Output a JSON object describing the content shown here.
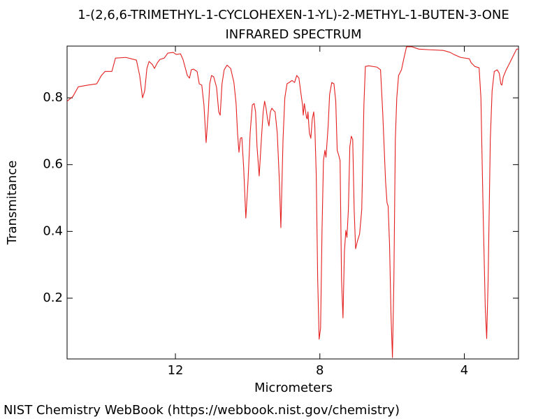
{
  "chart_data": {
    "type": "line",
    "title": "1-(2,6,6-TRIMETHYL-1-CYCLOHEXEN-1-YL)-2-METHYL-1-BUTEN-3-ONE",
    "subtitle": "INFRARED SPECTRUM",
    "x_label": "Micrometers",
    "y_label": "Transmitance",
    "color": "#e41f1f",
    "xlim": [
      15,
      2.5
    ],
    "xticks": [
      12,
      8,
      4
    ],
    "ylim": [
      0.018,
      0.955
    ],
    "yticks": [
      0.2,
      0.4,
      0.6,
      0.8
    ],
    "x": [
      15.0,
      14.84,
      14.69,
      14.43,
      14.18,
      14.05,
      13.95,
      13.76,
      13.66,
      13.37,
      13.08,
      12.99,
      12.91,
      12.85,
      12.79,
      12.73,
      12.64,
      12.58,
      12.5,
      12.43,
      12.31,
      12.21,
      12.06,
      11.98,
      11.86,
      11.79,
      11.67,
      11.61,
      11.56,
      11.5,
      11.4,
      11.34,
      11.27,
      11.21,
      11.15,
      11.09,
      11.05,
      11.0,
      10.94,
      10.86,
      10.8,
      10.76,
      10.71,
      10.65,
      10.57,
      10.47,
      10.38,
      10.32,
      10.28,
      10.24,
      10.2,
      10.16,
      10.11,
      10.05,
      9.99,
      9.93,
      9.87,
      9.82,
      9.78,
      9.74,
      9.68,
      9.62,
      9.57,
      9.53,
      9.49,
      9.45,
      9.41,
      9.37,
      9.33,
      9.28,
      9.24,
      9.18,
      9.12,
      9.08,
      9.02,
      8.97,
      8.91,
      8.85,
      8.77,
      8.7,
      8.64,
      8.58,
      8.52,
      8.48,
      8.46,
      8.43,
      8.41,
      8.37,
      8.35,
      8.33,
      8.29,
      8.25,
      8.21,
      8.17,
      8.14,
      8.1,
      8.06,
      8.02,
      7.98,
      7.94,
      7.9,
      7.86,
      7.83,
      7.77,
      7.73,
      7.67,
      7.61,
      7.56,
      7.52,
      7.48,
      7.44,
      7.4,
      7.36,
      7.32,
      7.28,
      7.25,
      7.21,
      7.17,
      7.13,
      7.09,
      7.05,
      7.01,
      6.96,
      6.9,
      6.84,
      6.78,
      6.74,
      6.65,
      6.42,
      6.32,
      6.26,
      6.18,
      6.14,
      6.11,
      6.07,
      6.03,
      5.99,
      5.95,
      5.91,
      5.87,
      5.82,
      5.74,
      5.68,
      5.6,
      5.45,
      5.26,
      4.97,
      4.58,
      4.39,
      4.29,
      4.1,
      3.86,
      3.81,
      3.71,
      3.59,
      3.54,
      3.48,
      3.42,
      3.38,
      3.34,
      3.28,
      3.23,
      3.17,
      3.09,
      3.03,
      2.99,
      2.96,
      2.92,
      2.84,
      2.74,
      2.65,
      2.55,
      2.5
    ],
    "values": [
      0.79,
      0.804,
      0.833,
      0.838,
      0.842,
      0.867,
      0.879,
      0.879,
      0.919,
      0.921,
      0.913,
      0.867,
      0.8,
      0.821,
      0.888,
      0.909,
      0.9,
      0.888,
      0.905,
      0.915,
      0.919,
      0.934,
      0.936,
      0.93,
      0.932,
      0.915,
      0.867,
      0.859,
      0.884,
      0.886,
      0.879,
      0.842,
      0.838,
      0.779,
      0.666,
      0.758,
      0.842,
      0.867,
      0.863,
      0.831,
      0.758,
      0.748,
      0.842,
      0.884,
      0.898,
      0.888,
      0.846,
      0.783,
      0.695,
      0.637,
      0.679,
      0.681,
      0.591,
      0.44,
      0.549,
      0.695,
      0.779,
      0.783,
      0.758,
      0.654,
      0.566,
      0.675,
      0.758,
      0.79,
      0.769,
      0.737,
      0.716,
      0.758,
      0.769,
      0.762,
      0.758,
      0.695,
      0.549,
      0.411,
      0.675,
      0.8,
      0.842,
      0.846,
      0.852,
      0.846,
      0.867,
      0.859,
      0.81,
      0.779,
      0.748,
      0.783,
      0.769,
      0.741,
      0.737,
      0.758,
      0.695,
      0.679,
      0.737,
      0.758,
      0.716,
      0.57,
      0.256,
      0.077,
      0.11,
      0.403,
      0.612,
      0.643,
      0.622,
      0.716,
      0.81,
      0.846,
      0.842,
      0.79,
      0.643,
      0.629,
      0.612,
      0.256,
      0.141,
      0.34,
      0.403,
      0.382,
      0.465,
      0.654,
      0.685,
      0.675,
      0.465,
      0.348,
      0.371,
      0.392,
      0.465,
      0.779,
      0.894,
      0.896,
      0.892,
      0.884,
      0.758,
      0.549,
      0.486,
      0.476,
      0.361,
      0.152,
      0.022,
      0.256,
      0.675,
      0.8,
      0.867,
      0.884,
      0.915,
      0.953,
      0.953,
      0.946,
      0.944,
      0.942,
      0.936,
      0.93,
      0.921,
      0.917,
      0.905,
      0.894,
      0.89,
      0.8,
      0.465,
      0.173,
      0.079,
      0.256,
      0.675,
      0.821,
      0.879,
      0.884,
      0.873,
      0.842,
      0.838,
      0.863,
      0.884,
      0.905,
      0.925,
      0.946,
      0.946
    ]
  },
  "footer": "NIST Chemistry WebBook (https://webbook.nist.gov/chemistry)"
}
